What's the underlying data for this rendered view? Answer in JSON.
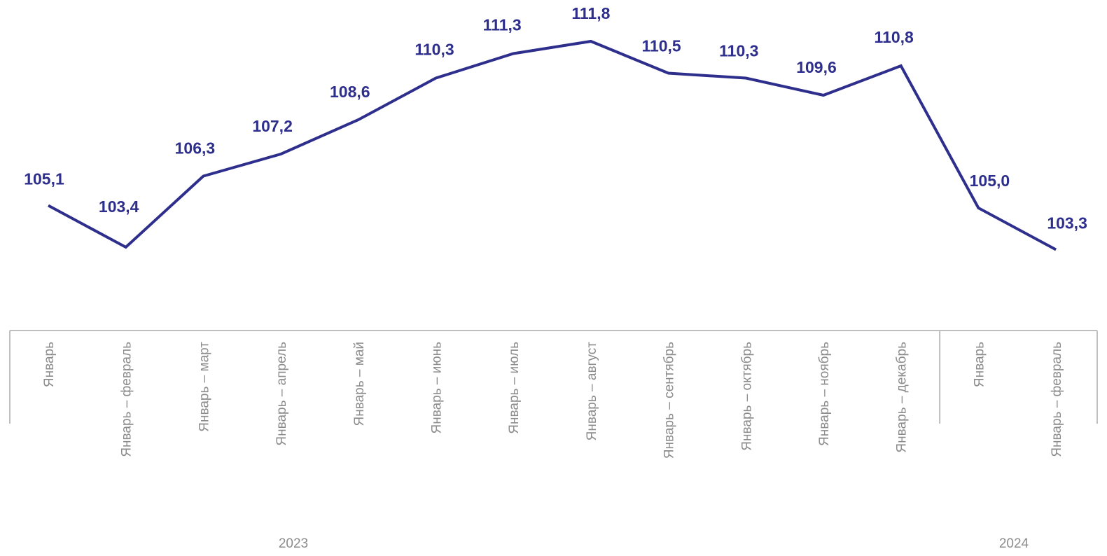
{
  "chart_data": {
    "type": "line",
    "title": "",
    "xlabel": "",
    "ylabel": "",
    "ylim": [
      100,
      112.5
    ],
    "grid": false,
    "legend": "none",
    "categories": [
      "Январь",
      "Январь – февраль",
      "Январь – март",
      "Январь – апрель",
      "Январь – май",
      "Январь – июнь",
      "Январь – июль",
      "Январь – август",
      "Январь – сентябрь",
      "Январь – октябрь",
      "Январь – ноябрь",
      "Январь – декабрь",
      "Январь",
      "Январь – февраль"
    ],
    "values": [
      105.1,
      103.4,
      106.3,
      107.2,
      108.6,
      110.3,
      111.3,
      111.8,
      110.5,
      110.3,
      109.6,
      110.8,
      105.0,
      103.3
    ],
    "data_labels": [
      "105,1",
      "103,4",
      "106,3",
      "107,2",
      "108,6",
      "110,3",
      "111,3",
      "111,8",
      "110,5",
      "110,3",
      "109,6",
      "110,8",
      "105,0",
      "103,3"
    ],
    "groups": [
      {
        "label": "2023",
        "count": 12
      },
      {
        "label": "2024",
        "count": 2
      }
    ],
    "colors": {
      "line": "#2e2e8c",
      "labels": "#2e2e8c",
      "axis": "#bfbfbf",
      "category_text": "#8c8c8c"
    }
  }
}
